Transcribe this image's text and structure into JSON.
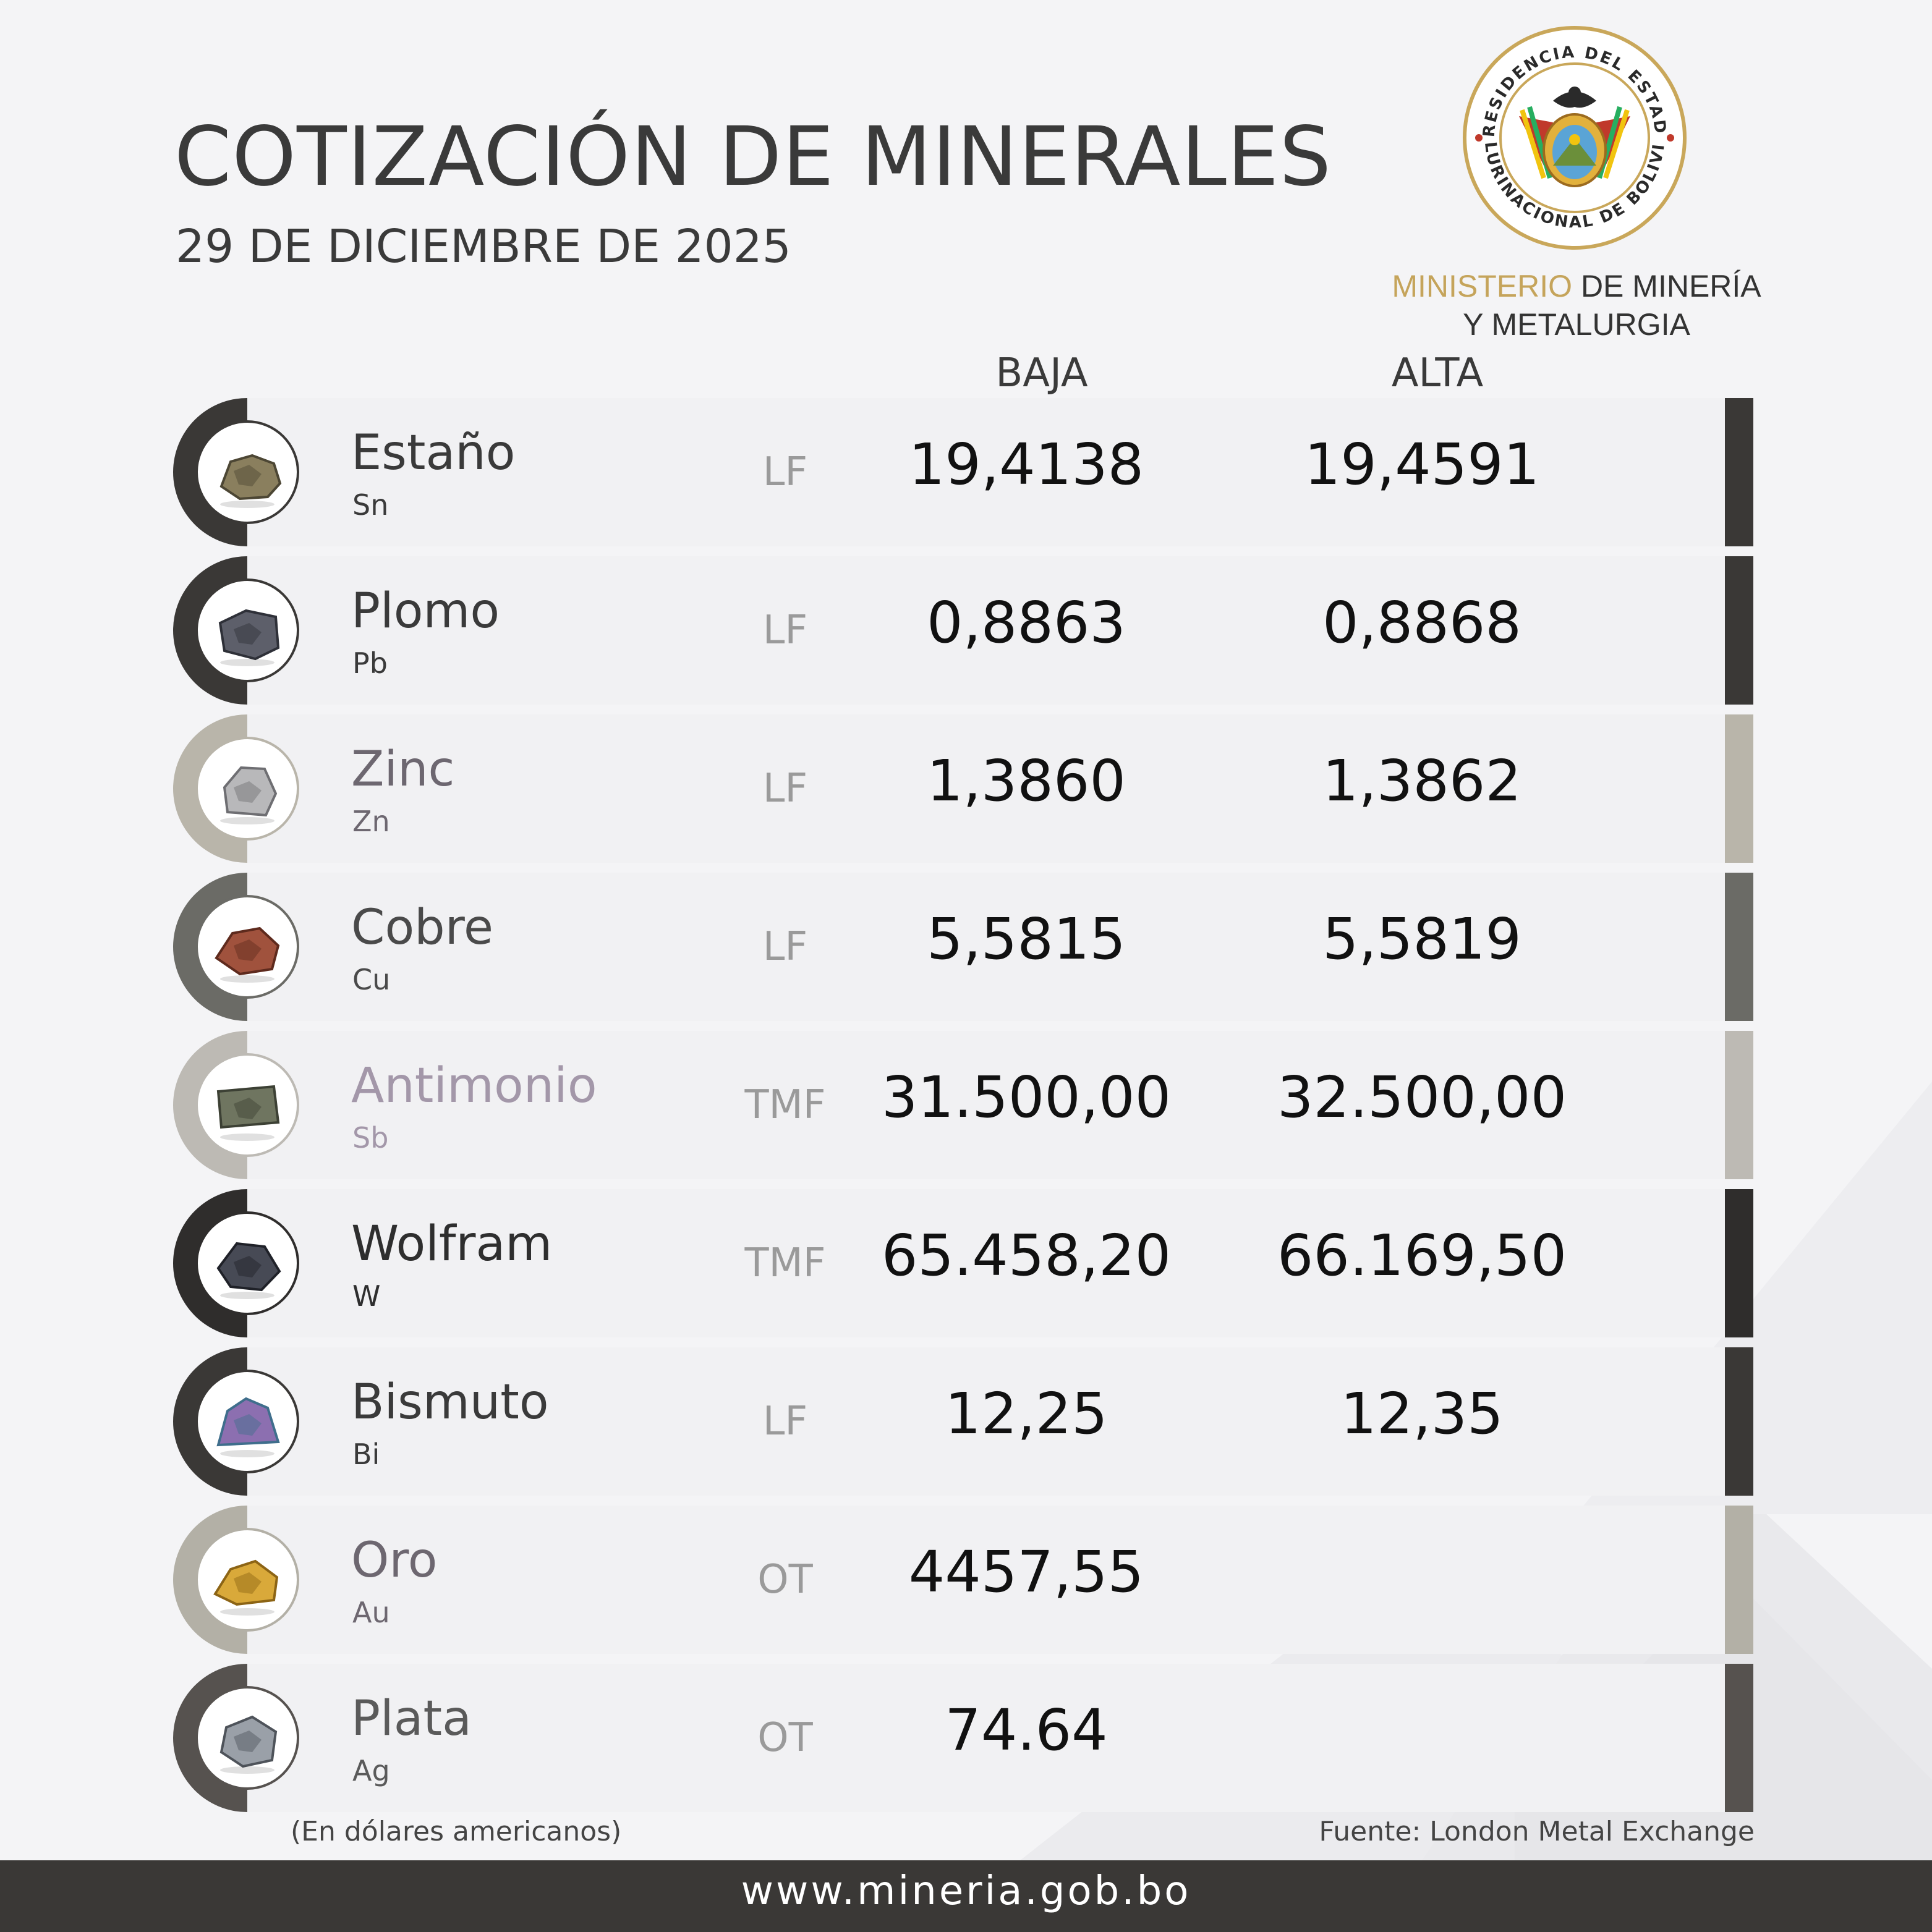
{
  "header": {
    "title": "COTIZACIÓN DE MINERALES",
    "date": "29 DE DICIEMBRE DE 2025"
  },
  "seal": {
    "top_text": "PRESIDENCIA DEL ESTADO",
    "bottom_text": "PLURINACIONAL DE BOLIVIA"
  },
  "ministry": {
    "line1_gold": "MINISTERIO",
    "line1_rest": " DE MINERÍA",
    "line2": "Y METALURGIA"
  },
  "columns": {
    "low": "BAJA",
    "high": "ALTA"
  },
  "minerals": [
    {
      "name": "Estaño",
      "symbol": "Sn",
      "unit": "LF",
      "low": "19,4138",
      "high": "19,4591",
      "name_color": "#3a3a3a",
      "accent": "#3a3836",
      "icon": "tin-ore-icon"
    },
    {
      "name": "Plomo",
      "symbol": "Pb",
      "unit": "LF",
      "low": "0,8863",
      "high": "0,8868",
      "name_color": "#3a3a3a",
      "accent": "#3a3836",
      "icon": "lead-ore-icon"
    },
    {
      "name": "Zinc",
      "symbol": "Zn",
      "unit": "LF",
      "low": "1,3860",
      "high": "1,3862",
      "name_color": "#6d6770",
      "accent": "#b9b5aa",
      "icon": "zinc-ore-icon"
    },
    {
      "name": "Cobre",
      "symbol": "Cu",
      "unit": "LF",
      "low": "5,5815",
      "high": "5,5819",
      "name_color": "#4a4a4a",
      "accent": "#6b6b66",
      "icon": "copper-ore-icon"
    },
    {
      "name": "Antimonio",
      "symbol": "Sb",
      "unit": "TMF",
      "low": "31.500,00",
      "high": "32.500,00",
      "name_color": "#a397a9",
      "accent": "#bdbab4",
      "icon": "antimony-ore-icon"
    },
    {
      "name": "Wolfram",
      "symbol": "W",
      "unit": "TMF",
      "low": "65.458,20",
      "high": "66.169,50",
      "name_color": "#2e2e2e",
      "accent": "#2f2d2c",
      "icon": "tungsten-ore-icon"
    },
    {
      "name": "Bismuto",
      "symbol": "Bi",
      "unit": "LF",
      "low": "12,25",
      "high": "12,35",
      "name_color": "#3a3a3a",
      "accent": "#3a3836",
      "icon": "bismuth-crystal-icon"
    },
    {
      "name": "Oro",
      "symbol": "Au",
      "unit": "OT",
      "low": "4457,55",
      "high": "",
      "name_color": "#6d6770",
      "accent": "#b3b0a6",
      "icon": "gold-nugget-icon"
    },
    {
      "name": "Plata",
      "symbol": "Ag",
      "unit": "OT",
      "low": "74.64",
      "high": "",
      "name_color": "#5a5a5a",
      "accent": "#56524f",
      "icon": "silver-ore-icon"
    }
  ],
  "footer": {
    "note": "(En dólares americanos)",
    "source": "Fuente: London Metal Exchange",
    "website": "www.mineria.gob.bo"
  }
}
